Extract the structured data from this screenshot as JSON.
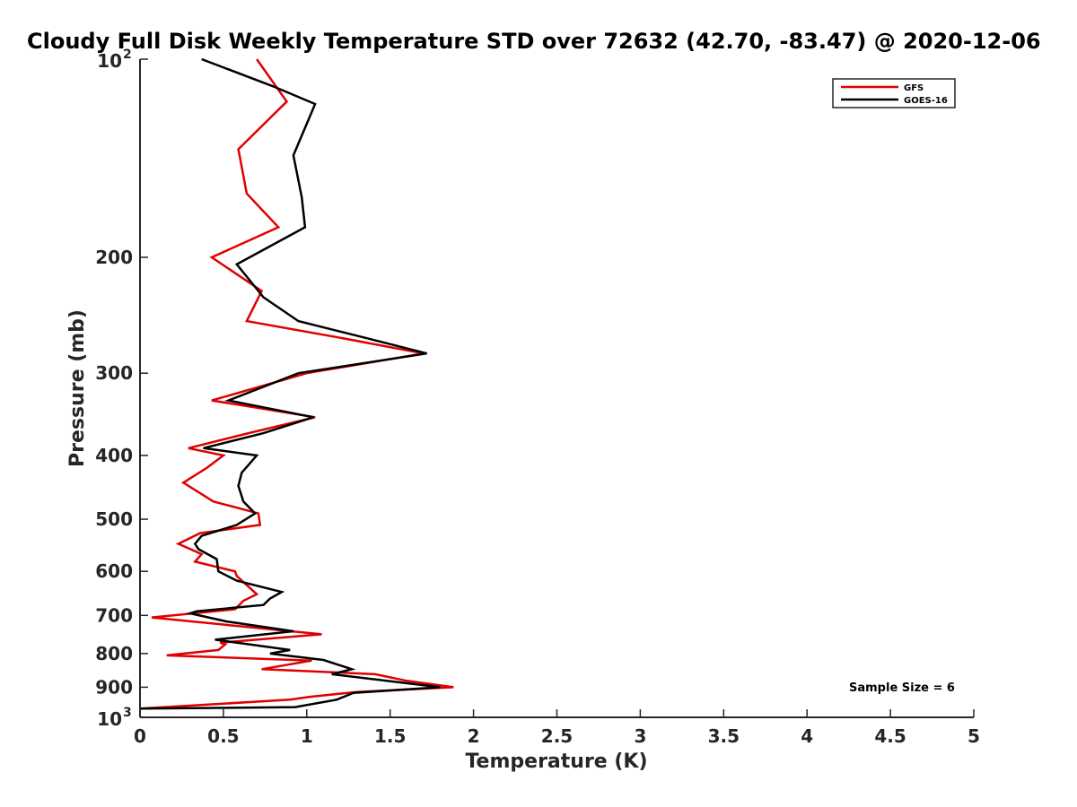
{
  "chart_data": {
    "type": "line",
    "title": "Cloudy Full Disk Weekly Temperature STD over 72632 (42.70, -83.47) @ 2020-12-06",
    "xlabel": "Temperature (K)",
    "ylabel": "Pressure (mb)",
    "xlim": [
      0,
      5
    ],
    "ylim": [
      100,
      1000
    ],
    "yscale": "log",
    "y_reversed": true,
    "grid": false,
    "legend_position": "top-right",
    "x_ticks": [
      "0",
      "0.5",
      "1",
      "1.5",
      "2",
      "2.5",
      "3",
      "3.5",
      "4",
      "4.5",
      "5"
    ],
    "y_ticks": [
      {
        "value": 100,
        "base": "10",
        "exp": "2"
      },
      {
        "value": 200,
        "label": "200"
      },
      {
        "value": 300,
        "label": "300"
      },
      {
        "value": 400,
        "label": "400"
      },
      {
        "value": 500,
        "label": "500"
      },
      {
        "value": 600,
        "label": "600"
      },
      {
        "value": 700,
        "label": "700"
      },
      {
        "value": 800,
        "label": "800"
      },
      {
        "value": 900,
        "label": "900"
      },
      {
        "value": 1000,
        "base": "10",
        "exp": "3"
      }
    ],
    "annotation": "Sample Size = 6",
    "series": [
      {
        "name": "GFS",
        "color": "#e00000",
        "points": [
          [
            0.7,
            100
          ],
          [
            0.88,
            116
          ],
          [
            0.59,
            137
          ],
          [
            0.64,
            160
          ],
          [
            0.83,
            180
          ],
          [
            0.43,
            200
          ],
          [
            0.73,
            225
          ],
          [
            0.64,
            250
          ],
          [
            1.2,
            265
          ],
          [
            1.7,
            280
          ],
          [
            1.0,
            300
          ],
          [
            0.43,
            330
          ],
          [
            1.05,
            350
          ],
          [
            0.65,
            370
          ],
          [
            0.29,
            390
          ],
          [
            0.5,
            400
          ],
          [
            0.4,
            418
          ],
          [
            0.26,
            440
          ],
          [
            0.44,
            470
          ],
          [
            0.71,
            490
          ],
          [
            0.72,
            510
          ],
          [
            0.36,
            525
          ],
          [
            0.23,
            545
          ],
          [
            0.37,
            565
          ],
          [
            0.33,
            580
          ],
          [
            0.57,
            600
          ],
          [
            0.58,
            610
          ],
          [
            0.7,
            650
          ],
          [
            0.62,
            665
          ],
          [
            0.57,
            685
          ],
          [
            0.07,
            705
          ],
          [
            0.55,
            725
          ],
          [
            1.09,
            748
          ],
          [
            0.48,
            770
          ],
          [
            0.51,
            775
          ],
          [
            0.47,
            790
          ],
          [
            0.16,
            805
          ],
          [
            1.03,
            820
          ],
          [
            0.73,
            845
          ],
          [
            1.41,
            860
          ],
          [
            1.6,
            880
          ],
          [
            1.88,
            900
          ],
          [
            1.3,
            915
          ],
          [
            1.03,
            930
          ],
          [
            0.9,
            940
          ],
          [
            0.0,
            970
          ]
        ]
      },
      {
        "name": "GOES-16",
        "color": "#000000",
        "points": [
          [
            0.37,
            100
          ],
          [
            0.8,
            110
          ],
          [
            1.05,
            117
          ],
          [
            0.92,
            140
          ],
          [
            0.97,
            162
          ],
          [
            0.99,
            180
          ],
          [
            0.58,
            205
          ],
          [
            0.74,
            230
          ],
          [
            0.95,
            250
          ],
          [
            1.35,
            265
          ],
          [
            1.72,
            280
          ],
          [
            0.95,
            300
          ],
          [
            0.53,
            330
          ],
          [
            1.04,
            350
          ],
          [
            0.74,
            370
          ],
          [
            0.38,
            390
          ],
          [
            0.7,
            400
          ],
          [
            0.61,
            425
          ],
          [
            0.59,
            445
          ],
          [
            0.62,
            470
          ],
          [
            0.69,
            490
          ],
          [
            0.58,
            510
          ],
          [
            0.37,
            530
          ],
          [
            0.33,
            545
          ],
          [
            0.35,
            555
          ],
          [
            0.46,
            575
          ],
          [
            0.47,
            600
          ],
          [
            0.58,
            620
          ],
          [
            0.85,
            645
          ],
          [
            0.78,
            660
          ],
          [
            0.74,
            675
          ],
          [
            0.34,
            690
          ],
          [
            0.3,
            695
          ],
          [
            0.52,
            715
          ],
          [
            0.92,
            740
          ],
          [
            0.45,
            762
          ],
          [
            0.9,
            790
          ],
          [
            0.78,
            800
          ],
          [
            1.1,
            818
          ],
          [
            1.27,
            845
          ],
          [
            1.15,
            860
          ],
          [
            1.8,
            900
          ],
          [
            1.28,
            918
          ],
          [
            1.18,
            940
          ],
          [
            0.93,
            965
          ],
          [
            0.0,
            970
          ]
        ]
      }
    ]
  }
}
